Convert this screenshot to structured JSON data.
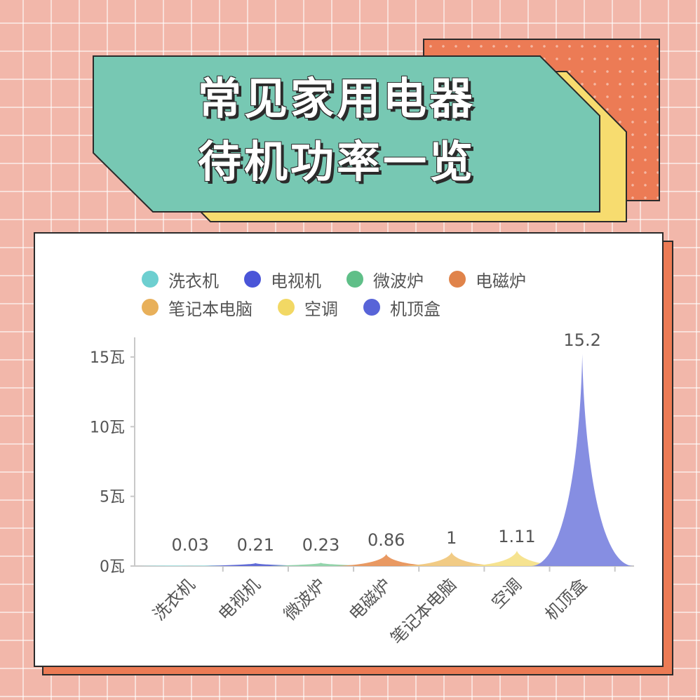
{
  "title": {
    "line1": "常见家用电器",
    "line2": "待机功率一览"
  },
  "colors": {
    "background": "#f2b7aa",
    "title_box": "#77c8b3",
    "title_shadow": "#f7dc6f",
    "accent": "#ec7b55"
  },
  "chart_data": {
    "type": "area",
    "categories": [
      "洗衣机",
      "电视机",
      "微波炉",
      "电磁炉",
      "笔记本电脑",
      "空调",
      "机顶盒"
    ],
    "values": [
      0.03,
      0.21,
      0.23,
      0.86,
      1,
      1.11,
      15.2
    ],
    "value_labels": [
      "0.03",
      "0.21",
      "0.23",
      "0.86",
      "1",
      "1.11",
      "15.2"
    ],
    "series_colors": [
      "#6dcfd0",
      "#4a55d8",
      "#5fbf88",
      "#e0834a",
      "#e8b05a",
      "#f2d864",
      "#5864d8"
    ],
    "fill_colors": [
      "#a9e4e4",
      "#5964d6",
      "#8ed3a8",
      "#e8935a",
      "#f0c87e",
      "#f6e28a",
      "#7f88e0"
    ],
    "legend": [
      {
        "label": "洗衣机",
        "color": "#6dcfd0"
      },
      {
        "label": "电视机",
        "color": "#4a55d8"
      },
      {
        "label": "微波炉",
        "color": "#5fbf88"
      },
      {
        "label": "电磁炉",
        "color": "#e0834a"
      },
      {
        "label": "笔记本电脑",
        "color": "#e8b05a"
      },
      {
        "label": "空调",
        "color": "#f2d864"
      },
      {
        "label": "机顶盒",
        "color": "#5864d8"
      }
    ],
    "y_ticks": [
      0,
      5,
      10,
      15
    ],
    "y_tick_labels": [
      "0瓦",
      "5瓦",
      "10瓦",
      "15瓦"
    ],
    "ylim": [
      0,
      15.2
    ],
    "legend_position": "top",
    "grid": false
  }
}
